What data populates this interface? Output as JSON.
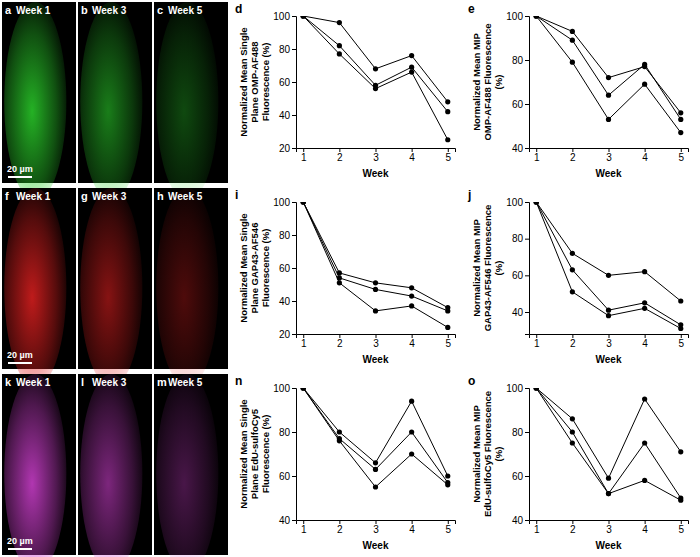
{
  "image_panels": [
    {
      "letter": "a",
      "label": "Week 1",
      "scale_bar": "20 µm",
      "color": "#2bd12b"
    },
    {
      "letter": "b",
      "label": "Week 3",
      "color": "#2bd12b"
    },
    {
      "letter": "c",
      "label": "Week 5",
      "color": "#2bd12b"
    },
    {
      "letter": "f",
      "label": "Week 1",
      "scale_bar": "20 µm",
      "color": "#e02020"
    },
    {
      "letter": "g",
      "label": "Week 3",
      "color": "#e02020"
    },
    {
      "letter": "h",
      "label": "Week 5",
      "color": "#e02020"
    },
    {
      "letter": "k",
      "label": "Week 1",
      "scale_bar": "20 µm",
      "color": "#d040d0"
    },
    {
      "letter": "l",
      "label": "Week 3",
      "color": "#d040d0"
    },
    {
      "letter": "m",
      "label": "Week 5",
      "color": "#d040d0"
    }
  ],
  "chart_data": [
    {
      "type": "line",
      "panel_label": "d",
      "x_label": "Week",
      "y_label": "Normalized Mean Single Plane OMP-AF488 Fluorescence (%)",
      "x": [
        1,
        2,
        3,
        4,
        5
      ],
      "xlim": [
        0.8,
        5.2
      ],
      "xticks": [
        1,
        2,
        3,
        4,
        5
      ],
      "ylim": [
        20,
        100
      ],
      "yticks": [
        20,
        40,
        60,
        80,
        100
      ],
      "series": [
        {
          "color": "#000000",
          "marker": "circle",
          "values": [
            100,
            96,
            68,
            76,
            48
          ]
        },
        {
          "color": "#000000",
          "marker": "circle",
          "values": [
            100,
            82,
            58,
            69,
            42
          ]
        },
        {
          "color": "#000000",
          "marker": "circle",
          "values": [
            100,
            77,
            56,
            66,
            25
          ]
        }
      ]
    },
    {
      "type": "line",
      "panel_label": "e",
      "x_label": "Week",
      "y_label": "Normalized Mean MIP OMP-AF488 Fluorescence (%)",
      "x": [
        1,
        2,
        3,
        4,
        5
      ],
      "xlim": [
        0.8,
        5.2
      ],
      "xticks": [
        1,
        2,
        3,
        4,
        5
      ],
      "ylim": [
        40,
        100
      ],
      "yticks": [
        40,
        60,
        80,
        100
      ],
      "series": [
        {
          "color": "#000000",
          "marker": "circle",
          "values": [
            100,
            93,
            72,
            77,
            56
          ]
        },
        {
          "color": "#000000",
          "marker": "circle",
          "values": [
            100,
            89,
            64,
            78,
            53
          ]
        },
        {
          "color": "#000000",
          "marker": "circle",
          "values": [
            100,
            79,
            53,
            69,
            47
          ]
        }
      ]
    },
    {
      "type": "line",
      "panel_label": "i",
      "x_label": "Week",
      "y_label": "Normalized Mean Single Plane GAP43-AF546 Fluorescence (%)",
      "x": [
        1,
        2,
        3,
        4,
        5
      ],
      "xlim": [
        0.8,
        5.2
      ],
      "xticks": [
        1,
        2,
        3,
        4,
        5
      ],
      "ylim": [
        20,
        100
      ],
      "yticks": [
        20,
        40,
        60,
        80,
        100
      ],
      "series": [
        {
          "color": "#000000",
          "marker": "circle",
          "values": [
            100,
            57,
            51,
            48,
            36
          ]
        },
        {
          "color": "#000000",
          "marker": "circle",
          "values": [
            100,
            54,
            47,
            43,
            34
          ]
        },
        {
          "color": "#000000",
          "marker": "circle",
          "values": [
            100,
            51,
            34,
            37,
            24
          ]
        }
      ]
    },
    {
      "type": "line",
      "panel_label": "j",
      "x_label": "Week",
      "y_label": "Normalized Mean MIP GAP43-AF546 Fluorescence (%)",
      "x": [
        1,
        2,
        3,
        4,
        5
      ],
      "xlim": [
        0.8,
        5.2
      ],
      "xticks": [
        1,
        2,
        3,
        4,
        5
      ],
      "ylim": [
        28,
        100
      ],
      "yticks": [
        40,
        60,
        80,
        100
      ],
      "series": [
        {
          "color": "#000000",
          "marker": "circle",
          "values": [
            100,
            72,
            60,
            62,
            46
          ]
        },
        {
          "color": "#000000",
          "marker": "circle",
          "values": [
            100,
            63,
            41,
            45,
            33
          ]
        },
        {
          "color": "#000000",
          "marker": "circle",
          "values": [
            100,
            51,
            38,
            42,
            31
          ]
        }
      ]
    },
    {
      "type": "line",
      "panel_label": "n",
      "x_label": "Week",
      "y_label": "Normalized Mean Single Plane EdU-sulfoCy5 Fluorescence (%)",
      "x": [
        1,
        2,
        3,
        4,
        5
      ],
      "xlim": [
        0.8,
        5.2
      ],
      "xticks": [
        1,
        2,
        3,
        4,
        5
      ],
      "ylim": [
        40,
        100
      ],
      "yticks": [
        40,
        60,
        80,
        100
      ],
      "series": [
        {
          "color": "#000000",
          "marker": "circle",
          "values": [
            100,
            80,
            66,
            94,
            60
          ]
        },
        {
          "color": "#000000",
          "marker": "circle",
          "values": [
            100,
            77,
            63,
            80,
            57
          ]
        },
        {
          "color": "#000000",
          "marker": "circle",
          "values": [
            100,
            76,
            55,
            70,
            56
          ]
        }
      ]
    },
    {
      "type": "line",
      "panel_label": "o",
      "x_label": "Week",
      "y_label": "Normalized Mean MIP EdU-sulfoCy5 Fluorescence (%)",
      "x": [
        1,
        2,
        3,
        4,
        5
      ],
      "xlim": [
        0.8,
        5.2
      ],
      "xticks": [
        1,
        2,
        3,
        4,
        5
      ],
      "ylim": [
        40,
        100
      ],
      "yticks": [
        40,
        60,
        80,
        100
      ],
      "series": [
        {
          "color": "#000000",
          "marker": "circle",
          "values": [
            100,
            86,
            59,
            95,
            71
          ]
        },
        {
          "color": "#000000",
          "marker": "circle",
          "values": [
            100,
            80,
            52,
            75,
            50
          ]
        },
        {
          "color": "#000000",
          "marker": "circle",
          "values": [
            100,
            75,
            52,
            58,
            49
          ]
        }
      ]
    }
  ]
}
